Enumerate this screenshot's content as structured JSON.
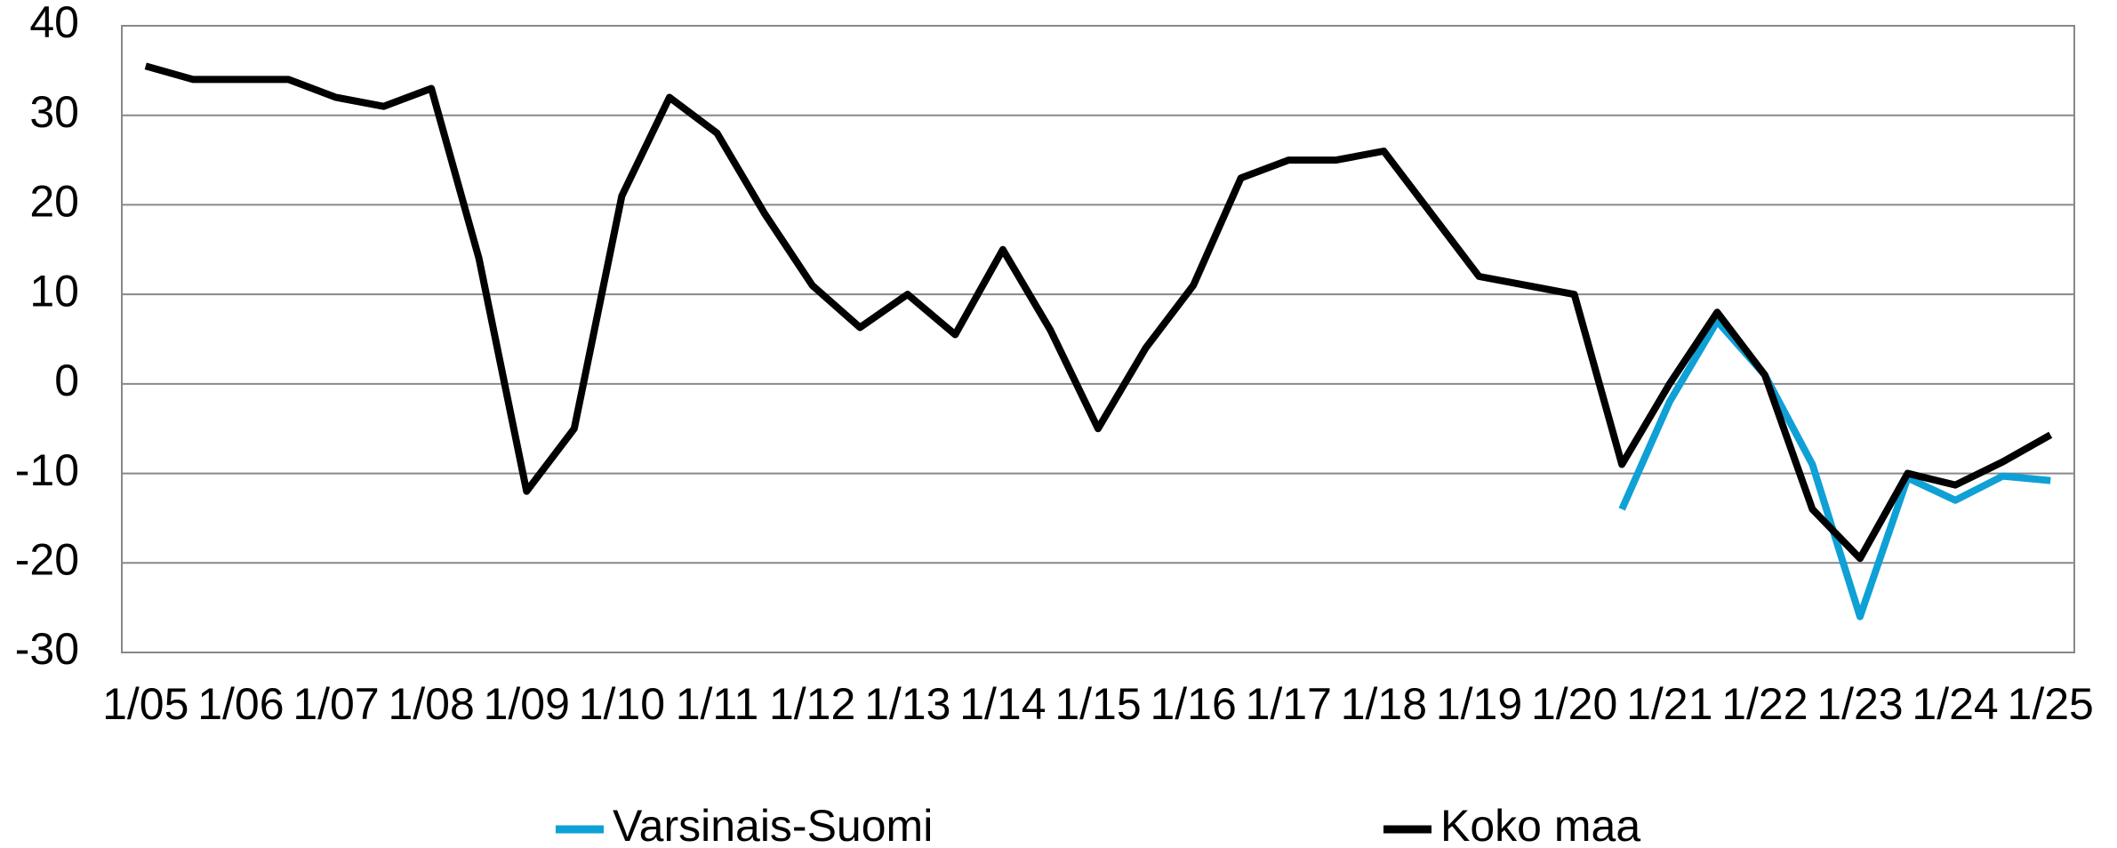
{
  "chart_data": {
    "type": "line",
    "categories": [
      "1/05",
      null,
      "1/06",
      null,
      "1/07",
      null,
      "1/08",
      null,
      "1/09",
      null,
      "1/10",
      null,
      "1/11",
      null,
      "1/12",
      null,
      "1/13",
      null,
      "1/14",
      null,
      "1/15",
      null,
      "1/16",
      null,
      "1/17",
      null,
      "1/18",
      null,
      "1/19",
      null,
      "1/20",
      null,
      "1/21",
      null,
      "1/22",
      null,
      "1/23",
      null,
      "1/24",
      null,
      "1/25"
    ],
    "series": [
      {
        "name": "Varsinais-Suomi",
        "color": "#0fa0d6",
        "values": [
          null,
          null,
          null,
          null,
          null,
          null,
          null,
          null,
          null,
          null,
          null,
          null,
          null,
          null,
          null,
          null,
          null,
          null,
          null,
          null,
          null,
          null,
          null,
          null,
          null,
          null,
          null,
          null,
          null,
          null,
          null,
          -14,
          -2,
          7,
          1,
          -9,
          -26,
          -10.5,
          -13,
          -10.3,
          -10.8
        ]
      },
      {
        "name": "Koko maa",
        "color": "#000000",
        "values": [
          35.5,
          34,
          34,
          34,
          32,
          31,
          33,
          14,
          -12,
          -5,
          21,
          32,
          28,
          19,
          11,
          6.3,
          10,
          5.5,
          15,
          6,
          -5,
          4,
          11,
          23,
          25,
          25,
          26,
          19,
          12,
          11,
          10,
          -9,
          0,
          8,
          1,
          -14,
          -19.5,
          -10,
          -11.3,
          -8.7,
          -5.7
        ]
      }
    ],
    "ylim": [
      -30,
      40
    ],
    "yticks": [
      -30,
      -20,
      -10,
      0,
      10,
      20,
      30,
      40
    ],
    "grid": true,
    "legend": "bottom"
  }
}
